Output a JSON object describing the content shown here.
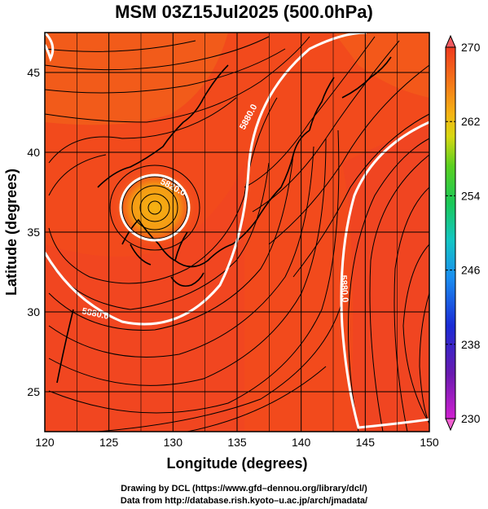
{
  "title": "MSM 03Z15Jul2025 (500.0hPa)",
  "xlabel": "Longitude (degrees)",
  "ylabel": "Latitude  (degrees)",
  "x_ticks": [
    "120",
    "125",
    "130",
    "135",
    "140",
    "145",
    "150"
  ],
  "y_ticks": [
    "25",
    "30",
    "35",
    "40",
    "45"
  ],
  "colorbar": {
    "ticks": [
      "270",
      "262",
      "254",
      "246",
      "238",
      "230"
    ],
    "min": 230,
    "max": 270
  },
  "contour_labels": [
    "5820.0",
    "5880.0",
    "5880.0",
    "5880.0"
  ],
  "credit_line1": "Drawing by DCL (https://www.gfd–dennou.org/library/dcl/)",
  "credit_line2": "Data from http://database.rish.kyoto–u.ac.jp/arch/jmadata/",
  "colors": {
    "field_main": "#f24a1c",
    "field_warm_core": "#f5a412",
    "contour": "#ffffff",
    "streamline": "#000000"
  },
  "chart_data": {
    "type": "heatmap",
    "variable": "temperature (K) with geopotential height contours and wind streamlines",
    "xlim": [
      120,
      150
    ],
    "ylim": [
      22.5,
      47.5
    ],
    "color_range": [
      230,
      270
    ],
    "field_range_approx": [
      262,
      268
    ],
    "features": [
      {
        "name": "low-centre",
        "lon": 128.5,
        "lat": 37.5,
        "value": 264
      },
      {
        "name": "contour-5880-east",
        "lon": 144,
        "lat": 31
      }
    ]
  }
}
